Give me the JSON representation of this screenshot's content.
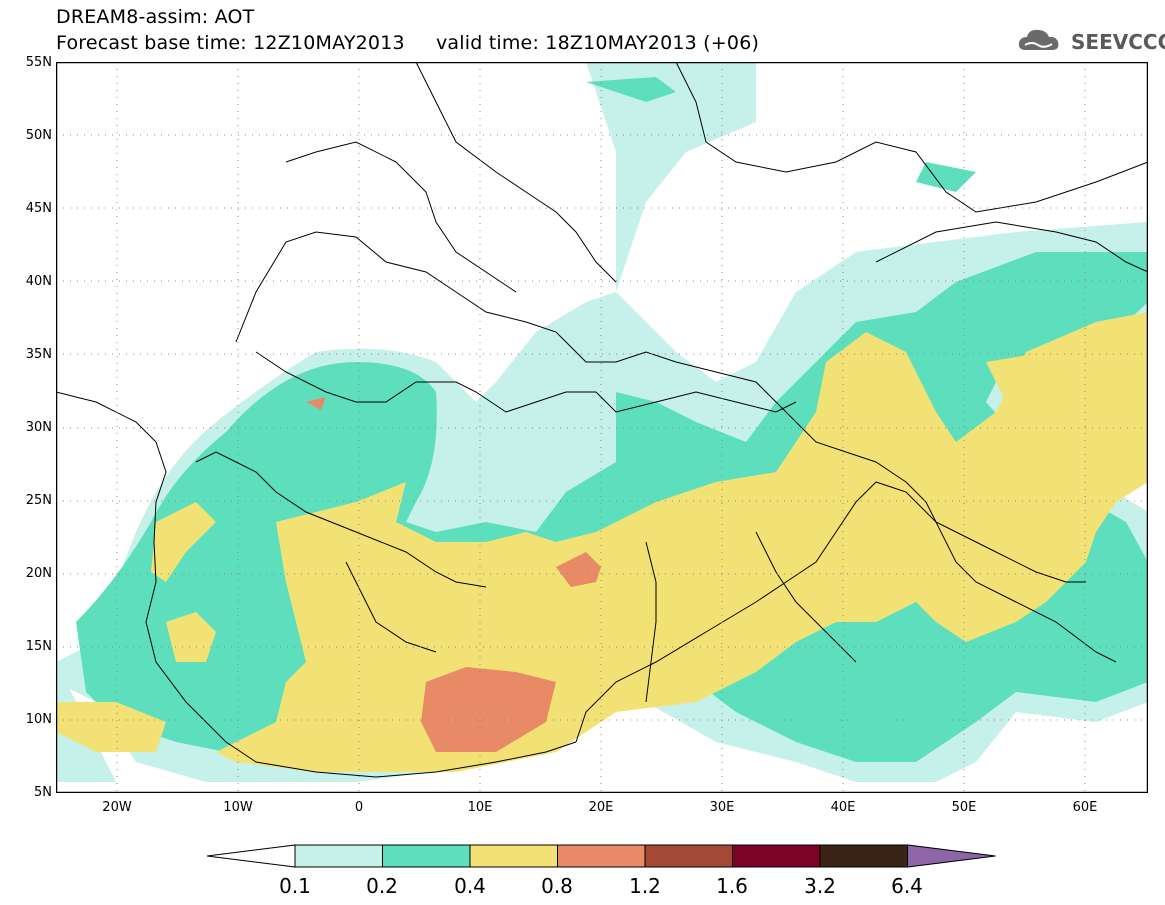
{
  "title": {
    "line1": "DREAM8-assim: AOT",
    "line2": "Forecast base time: 12Z10MAY2013     valid time: 18Z10MAY2013 (+06)"
  },
  "logo": {
    "text": "SEEVCCC",
    "icon": "cloud-logo-icon"
  },
  "map": {
    "region": "North Africa, Europe and Middle East",
    "variable": "AOT",
    "lat_labels": [
      "55N",
      "50N",
      "45N",
      "40N",
      "35N",
      "30N",
      "25N",
      "20N",
      "15N",
      "10N",
      "5N"
    ],
    "lon_labels": [
      "20W",
      "10W",
      "0",
      "10E",
      "20E",
      "30E",
      "40E",
      "50E",
      "60E"
    ],
    "grid": "dotted",
    "colors": {
      "c01_02": "#c6f0ea",
      "c02_04": "#5ddfbd",
      "c04_08": "#f2e275",
      "c08_12": "#e88a66",
      "c12_16": "#a54936",
      "c16_32": "#7d0324",
      "c32_64": "#3b2416",
      "c64_plus": "#8e65a8"
    }
  },
  "colorbar": {
    "levels": [
      "0.1",
      "0.2",
      "0.4",
      "0.8",
      "1.2",
      "1.6",
      "3.2",
      "6.4"
    ],
    "fill_colors": [
      "#c6f0ea",
      "#5ddfbd",
      "#f2e275",
      "#e88a66",
      "#a54936",
      "#7d0324",
      "#3b2416"
    ],
    "under_color": "#ffffff",
    "over_color": "#8e65a8"
  }
}
